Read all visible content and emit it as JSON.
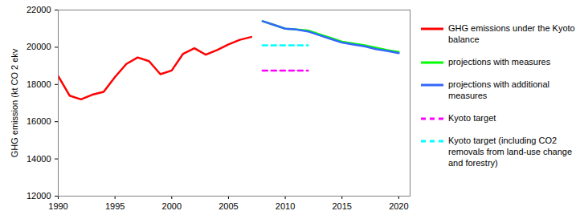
{
  "chart_data": {
    "type": "line",
    "y_label": "GHG emission (kt CO 2 ekv",
    "xlim": [
      1990,
      2021
    ],
    "xticks": [
      1990,
      1995,
      2000,
      2005,
      2010,
      2015,
      2020
    ],
    "ylim": [
      12000,
      22000
    ],
    "yticks": [
      12000,
      14000,
      16000,
      18000,
      20000,
      22000
    ],
    "grid": false,
    "legend": "right",
    "series": [
      {
        "name": "GHG emissions under the Kyoto balance",
        "color": "#ff0000",
        "line_style": "solid",
        "x": [
          1990,
          1991,
          1992,
          1993,
          1994,
          1995,
          1996,
          1997,
          1998,
          1999,
          2000,
          2001,
          2002,
          2003,
          2004,
          2005,
          2006,
          2007
        ],
        "values": [
          18450,
          17400,
          17200,
          17450,
          17600,
          18400,
          19100,
          19450,
          19250,
          18550,
          18750,
          19650,
          19950,
          19600,
          19850,
          20150,
          20400,
          20550
        ]
      },
      {
        "name": "projections with measures",
        "color": "#00ff00",
        "line_style": "solid",
        "x": [
          2008,
          2009,
          2010,
          2011,
          2012,
          2013,
          2014,
          2015,
          2016,
          2017,
          2018,
          2019,
          2020
        ],
        "values": [
          21400,
          21200,
          21000,
          20950,
          20900,
          20700,
          20500,
          20300,
          20200,
          20100,
          19980,
          19850,
          19750
        ]
      },
      {
        "name": "projections with additional measures",
        "color": "#3366ff",
        "line_style": "solid",
        "x": [
          2008,
          2009,
          2010,
          2011,
          2012,
          2013,
          2014,
          2015,
          2016,
          2017,
          2018,
          2019,
          2020
        ],
        "values": [
          21400,
          21200,
          21000,
          20950,
          20850,
          20650,
          20450,
          20250,
          20150,
          20050,
          19900,
          19800,
          19680
        ]
      },
      {
        "name": "Kyoto target",
        "color": "#ff00ff",
        "line_style": "dashed",
        "x": [
          2008,
          2009,
          2010,
          2011,
          2012
        ],
        "values": [
          18750,
          18750,
          18750,
          18750,
          18750
        ]
      },
      {
        "name": "Kyoto target (including CO2 removals from land-use change and forestry)",
        "color": "#00ffff",
        "line_style": "dashed",
        "x": [
          2008,
          2009,
          2010,
          2011,
          2012
        ],
        "values": [
          20100,
          20100,
          20100,
          20100,
          20100
        ]
      }
    ]
  }
}
